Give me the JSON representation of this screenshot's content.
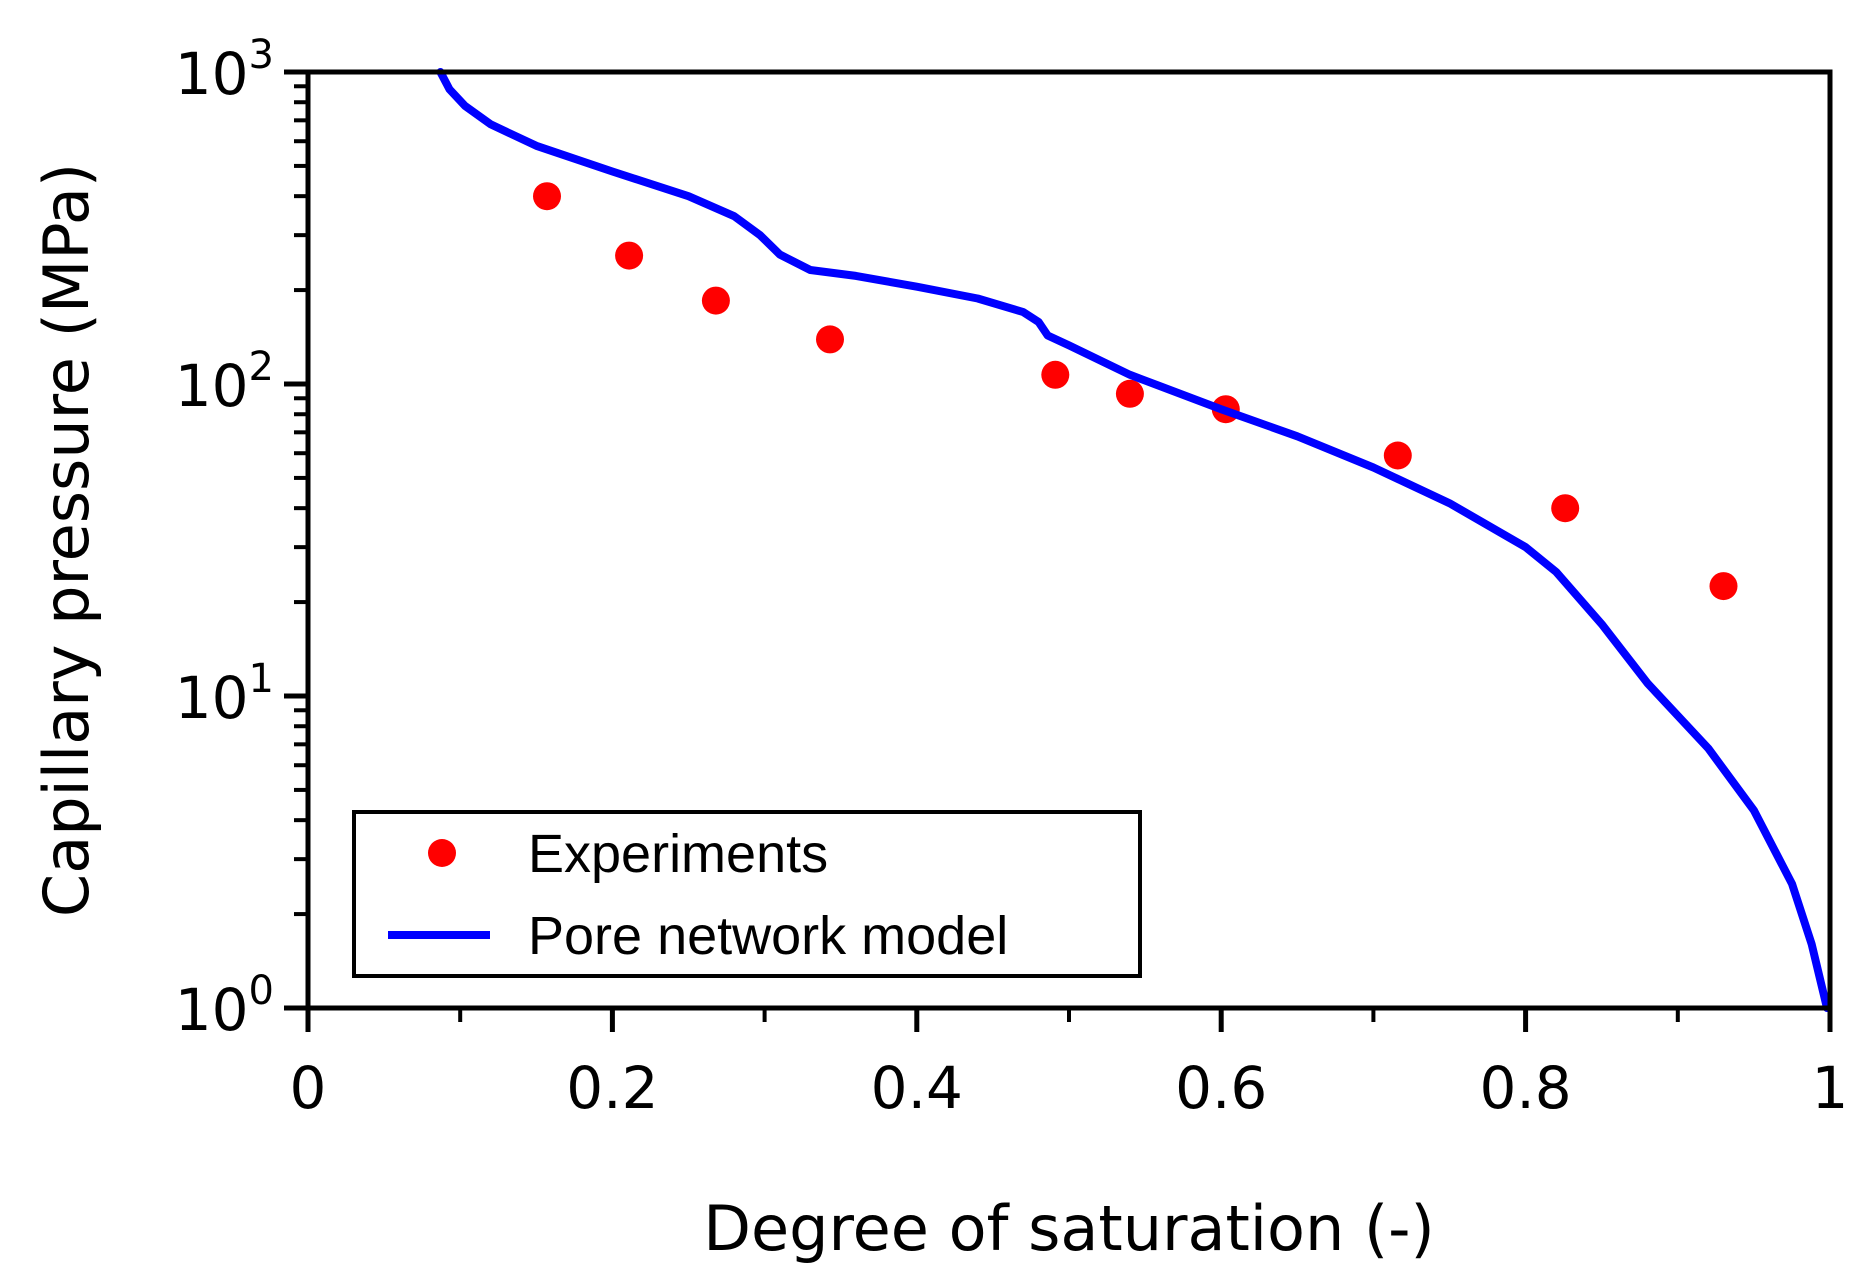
{
  "chart_data": {
    "type": "scatter",
    "title": "",
    "xlabel": "Degree of saturation (-)",
    "ylabel": "Capillary pressure (MPa)",
    "xlim": [
      0,
      1
    ],
    "ylim": [
      1,
      1000
    ],
    "yscale": "log",
    "grid": false,
    "legend_position": "lower-left",
    "x_ticks": [
      {
        "value": 0,
        "label": "0"
      },
      {
        "value": 0.2,
        "label": "0.2"
      },
      {
        "value": 0.4,
        "label": "0.4"
      },
      {
        "value": 0.6,
        "label": "0.6"
      },
      {
        "value": 0.8,
        "label": "0.8"
      },
      {
        "value": 1,
        "label": "1"
      }
    ],
    "y_ticks": [
      {
        "value": 1,
        "base": "10",
        "exp": "0"
      },
      {
        "value": 10,
        "base": "10",
        "exp": "1"
      },
      {
        "value": 100,
        "base": "10",
        "exp": "2"
      },
      {
        "value": 1000,
        "base": "10",
        "exp": "3"
      }
    ],
    "series": [
      {
        "name": "Experiments",
        "kind": "scatter",
        "color": "#ff0000",
        "points": [
          [
            0.157,
            400
          ],
          [
            0.211,
            258
          ],
          [
            0.268,
            185
          ],
          [
            0.343,
            139
          ],
          [
            0.491,
            107
          ],
          [
            0.54,
            93
          ],
          [
            0.603,
            83
          ],
          [
            0.716,
            59
          ],
          [
            0.826,
            40
          ],
          [
            0.93,
            22.5
          ]
        ]
      },
      {
        "name": "Pore network model",
        "kind": "line",
        "color": "#0000ff",
        "points": [
          [
            0.087,
            1000
          ],
          [
            0.093,
            880
          ],
          [
            0.103,
            780
          ],
          [
            0.12,
            680
          ],
          [
            0.15,
            580
          ],
          [
            0.2,
            480
          ],
          [
            0.25,
            400
          ],
          [
            0.28,
            345
          ],
          [
            0.297,
            300
          ],
          [
            0.31,
            260
          ],
          [
            0.33,
            232
          ],
          [
            0.36,
            222
          ],
          [
            0.4,
            205
          ],
          [
            0.44,
            188
          ],
          [
            0.47,
            170
          ],
          [
            0.48,
            158
          ],
          [
            0.486,
            143
          ],
          [
            0.5,
            133
          ],
          [
            0.54,
            107
          ],
          [
            0.6,
            83
          ],
          [
            0.65,
            68
          ],
          [
            0.7,
            54
          ],
          [
            0.75,
            41.5
          ],
          [
            0.8,
            30
          ],
          [
            0.82,
            25
          ],
          [
            0.85,
            17
          ],
          [
            0.88,
            11
          ],
          [
            0.92,
            6.8
          ],
          [
            0.95,
            4.3
          ],
          [
            0.975,
            2.5
          ],
          [
            0.988,
            1.6
          ],
          [
            0.998,
            1.0
          ]
        ]
      }
    ]
  }
}
